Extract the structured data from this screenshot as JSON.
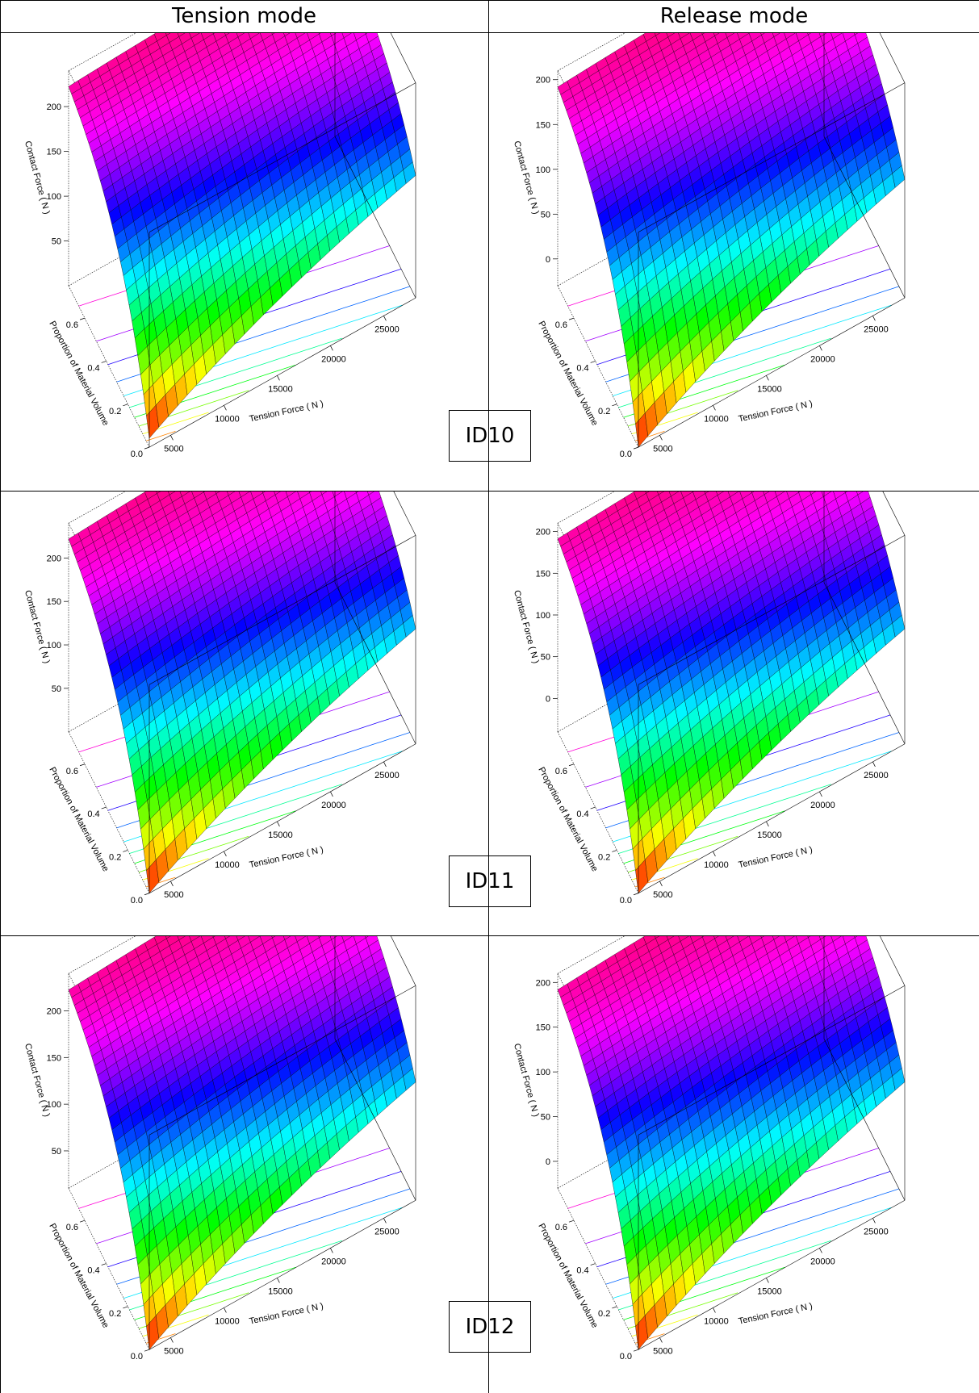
{
  "headers": {
    "left": "Tension mode",
    "right": "Release mode"
  },
  "rows": [
    {
      "id_label": "ID10"
    },
    {
      "id_label": "ID11"
    },
    {
      "id_label": "ID12"
    }
  ],
  "axis_labels": {
    "z": "Contact Force ( N )",
    "y": "Proportion of Material Volume",
    "x": "Tension Force ( N )"
  },
  "chart_data": [
    {
      "type": "surface",
      "panel": "ID10 Tension mode",
      "xlabel": "Tension Force ( N )",
      "ylabel": "Proportion of Material Volume",
      "zlabel": "Contact Force ( N )",
      "x_ticks": [
        5000,
        10000,
        15000,
        20000,
        25000
      ],
      "y_ticks": [
        0.0,
        0.2,
        0.4,
        0.6
      ],
      "z_ticks": [
        50,
        100,
        150,
        200
      ],
      "xlim": [
        3000,
        28000
      ],
      "ylim": [
        0.0,
        0.75
      ],
      "zlim": [
        0,
        240
      ],
      "surface_range": [
        10,
        235
      ]
    },
    {
      "type": "surface",
      "panel": "ID10 Release mode",
      "xlabel": "Tension Force ( N )",
      "ylabel": "Proportion of Material Volume",
      "zlabel": "Contact Force ( N )",
      "x_ticks": [
        5000,
        10000,
        15000,
        20000,
        25000
      ],
      "y_ticks": [
        0.0,
        0.2,
        0.4,
        0.6
      ],
      "z_ticks": [
        0,
        50,
        100,
        150,
        200
      ],
      "xlim": [
        3000,
        28000
      ],
      "ylim": [
        0.0,
        0.75
      ],
      "zlim": [
        -30,
        210
      ],
      "surface_range": [
        -30,
        205
      ]
    },
    {
      "type": "surface",
      "panel": "ID11 Tension mode",
      "xlabel": "Tension Force ( N )",
      "ylabel": "Proportion of Material Volume",
      "zlabel": "Contact Force ( N )",
      "x_ticks": [
        5000,
        10000,
        15000,
        20000,
        25000
      ],
      "y_ticks": [
        0.0,
        0.2,
        0.4,
        0.6
      ],
      "z_ticks": [
        50,
        100,
        150,
        200
      ],
      "xlim": [
        3000,
        28000
      ],
      "ylim": [
        0.0,
        0.75
      ],
      "zlim": [
        0,
        240
      ],
      "surface_range": [
        0,
        235
      ]
    },
    {
      "type": "surface",
      "panel": "ID11 Release mode",
      "xlabel": "Tension Force ( N )",
      "ylabel": "Proportion of Material Volume",
      "zlabel": "Contact Force ( N )",
      "x_ticks": [
        5000,
        10000,
        15000,
        20000,
        25000
      ],
      "y_ticks": [
        0.0,
        0.2,
        0.4,
        0.6
      ],
      "z_ticks": [
        0,
        50,
        100,
        150,
        200
      ],
      "xlim": [
        3000,
        28000
      ],
      "ylim": [
        0.0,
        0.75
      ],
      "zlim": [
        -40,
        210
      ],
      "surface_range": [
        -40,
        205
      ]
    },
    {
      "type": "surface",
      "panel": "ID12 Tension mode",
      "xlabel": "Tension Force ( N )",
      "ylabel": "Proportion of Material Volume",
      "zlabel": "Contact Force ( N )",
      "x_ticks": [
        5000,
        10000,
        15000,
        20000,
        25000
      ],
      "y_ticks": [
        0.0,
        0.2,
        0.4,
        0.6
      ],
      "z_ticks": [
        50,
        100,
        150,
        200
      ],
      "xlim": [
        3000,
        28000
      ],
      "ylim": [
        0.0,
        0.75
      ],
      "zlim": [
        10,
        240
      ],
      "surface_range": [
        10,
        235
      ]
    },
    {
      "type": "surface",
      "panel": "ID12 Release mode",
      "xlabel": "Tension Force ( N )",
      "ylabel": "Proportion of Material Volume",
      "zlabel": "Contact Force ( N )",
      "x_ticks": [
        5000,
        10000,
        15000,
        20000,
        25000
      ],
      "y_ticks": [
        0.0,
        0.2,
        0.4,
        0.6
      ],
      "z_ticks": [
        0,
        50,
        100,
        150,
        200
      ],
      "xlim": [
        3000,
        28000
      ],
      "ylim": [
        0.0,
        0.75
      ],
      "zlim": [
        -30,
        210
      ],
      "surface_range": [
        -30,
        205
      ]
    }
  ]
}
